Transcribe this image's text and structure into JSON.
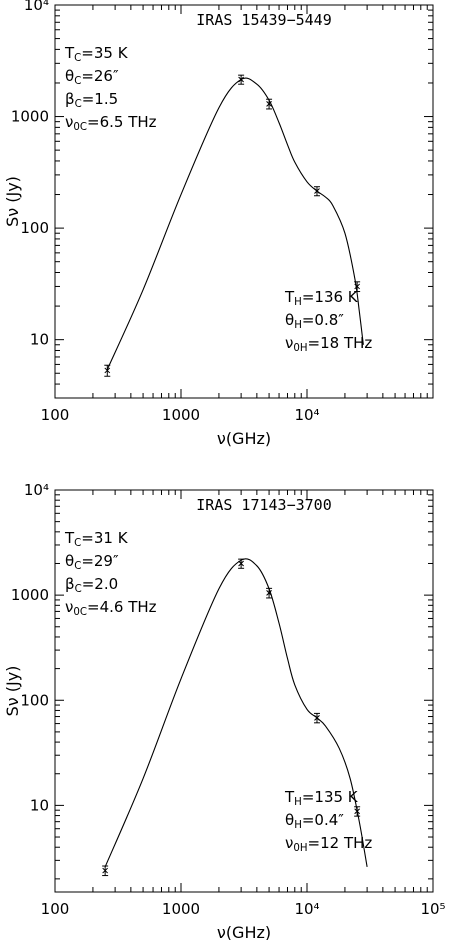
{
  "chart_data": [
    {
      "type": "scatter",
      "title": "IRAS 15439−5449",
      "xlabel": "ν(GHz)",
      "ylabel": "Sν (Jy)",
      "xscale": "log",
      "yscale": "log",
      "xlim": [
        100,
        100000
      ],
      "ylim": [
        3,
        10000
      ],
      "xticks": [
        {
          "v": 100,
          "label": "100"
        },
        {
          "v": 1000,
          "label": "1000"
        },
        {
          "v": 10000,
          "label": "10⁴"
        }
      ],
      "yticks": [
        {
          "v": 10,
          "label": "10"
        },
        {
          "v": 100,
          "label": "100"
        },
        {
          "v": 1000,
          "label": "1000"
        },
        {
          "v": 10000,
          "label": "10⁴"
        }
      ],
      "points": [
        {
          "x": 260,
          "y": 5.3,
          "err": 0.6
        },
        {
          "x": 3000,
          "y": 2150,
          "err": 200
        },
        {
          "x": 5000,
          "y": 1300,
          "err": 130
        },
        {
          "x": 12000,
          "y": 215,
          "err": 20
        },
        {
          "x": 25000,
          "y": 30,
          "err": 3
        }
      ],
      "model": {
        "x": [
          260,
          500,
          1000,
          2000,
          3000,
          4000,
          5000,
          6000,
          7000,
          8000,
          10000,
          12000,
          14000,
          16000,
          20000,
          24000,
          26000,
          28000
        ],
        "y": [
          5.4,
          28,
          200,
          1200,
          2150,
          1950,
          1400,
          880,
          560,
          390,
          260,
          215,
          190,
          160,
          90,
          35,
          18,
          9
        ]
      },
      "params_left": [
        "T_C=35 K",
        "θ_C=26″",
        "β_C=1.5",
        "ν_0C=6.5 THz"
      ],
      "params_right": [
        "T_H=136 K",
        "θ_H=0.8″",
        "ν_0H=18 THz"
      ]
    },
    {
      "type": "scatter",
      "title": "IRAS 17143−3700",
      "xlabel": "ν(GHz)",
      "ylabel": "Sν (Jy)",
      "xscale": "log",
      "yscale": "log",
      "xlim": [
        100,
        100000
      ],
      "ylim": [
        1.5,
        10000
      ],
      "xticks": [
        {
          "v": 100,
          "label": "100"
        },
        {
          "v": 1000,
          "label": "1000"
        },
        {
          "v": 10000,
          "label": "10⁴"
        },
        {
          "v": 100000,
          "label": "10⁵"
        }
      ],
      "yticks": [
        {
          "v": 10,
          "label": "10"
        },
        {
          "v": 100,
          "label": "100"
        },
        {
          "v": 1000,
          "label": "1000"
        },
        {
          "v": 10000,
          "label": "10⁴"
        }
      ],
      "points": [
        {
          "x": 250,
          "y": 2.4,
          "err": 0.25
        },
        {
          "x": 3000,
          "y": 2000,
          "err": 200
        },
        {
          "x": 5000,
          "y": 1050,
          "err": 110
        },
        {
          "x": 12000,
          "y": 68,
          "err": 7
        },
        {
          "x": 25000,
          "y": 8.8,
          "err": 0.9
        }
      ],
      "model": {
        "x": [
          250,
          500,
          1000,
          2000,
          3000,
          4000,
          5000,
          6000,
          7000,
          8000,
          10000,
          12000,
          14000,
          18000,
          22000,
          26000,
          30000
        ],
        "y": [
          2.6,
          18,
          160,
          1150,
          2150,
          1900,
          1150,
          540,
          250,
          140,
          82,
          68,
          57,
          35,
          18,
          7,
          2.6
        ]
      },
      "params_left": [
        "T_C=31 K",
        "θ_C=29″",
        "β_C=2.0",
        "ν_0C=4.6 THz"
      ],
      "params_right": [
        "T_H=135 K",
        "θ_H=0.4″",
        "ν_0H=12 THz"
      ]
    }
  ]
}
